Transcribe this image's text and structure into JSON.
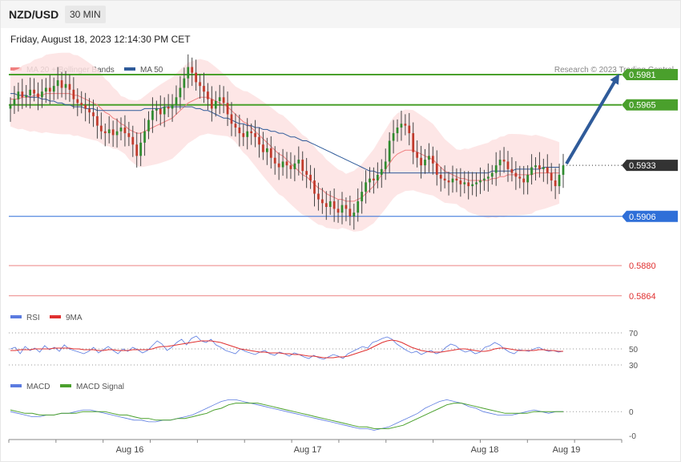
{
  "header": {
    "pair": "NZD/USD",
    "timeframe": "30 MIN",
    "datetime": "Friday, August 18, 2023 12:14:30 PM CET"
  },
  "legend_main": {
    "ma20": "MA 20 + Bollinger Bands",
    "ma50": "MA 50",
    "ma20_color": "#f08080",
    "ma50_color": "#2f5b9a"
  },
  "credit": "Research © 2023 Trading Central",
  "rsi_legend": {
    "rsi": "RSI",
    "ma9": "9MA",
    "rsi_color": "#5b7be0",
    "ma9_color": "#e03030"
  },
  "macd_legend": {
    "macd": "MACD",
    "signal": "MACD Signal",
    "macd_color": "#5b7be0",
    "signal_color": "#4aa02c"
  },
  "x_axis": [
    "Aug 16",
    "Aug 17",
    "Aug 18",
    "Aug 19"
  ],
  "chart_data": [
    {
      "type": "candlestick",
      "name": "price",
      "ylim": [
        0.5855,
        0.5995
      ],
      "levels": [
        {
          "label": "0.5981",
          "value": 0.5981,
          "kind": "resistance",
          "color": "#4aa02c"
        },
        {
          "label": "0.5965",
          "value": 0.5965,
          "kind": "resistance",
          "color": "#4aa02c"
        },
        {
          "label": "0.5933",
          "value": 0.5933,
          "kind": "last",
          "color": "#333333"
        },
        {
          "label": "0.5906",
          "value": 0.5906,
          "kind": "pivot",
          "color": "#2f6fd8"
        },
        {
          "label": "0.5880",
          "value": 0.588,
          "kind": "support",
          "color": "#e03030"
        },
        {
          "label": "0.5864",
          "value": 0.5864,
          "kind": "support",
          "color": "#e03030"
        }
      ],
      "closes": [
        0.5965,
        0.5968,
        0.5972,
        0.5969,
        0.597,
        0.5973,
        0.5971,
        0.5969,
        0.5972,
        0.5974,
        0.5972,
        0.5975,
        0.5978,
        0.5974,
        0.5976,
        0.5973,
        0.5968,
        0.5966,
        0.5965,
        0.5963,
        0.5961,
        0.5959,
        0.5954,
        0.5951,
        0.595,
        0.5952,
        0.5949,
        0.5951,
        0.5953,
        0.595,
        0.5948,
        0.5944,
        0.5938,
        0.5945,
        0.5951,
        0.5957,
        0.5962,
        0.5963,
        0.596,
        0.5964,
        0.5963,
        0.5965,
        0.5969,
        0.5974,
        0.5979,
        0.5985,
        0.5982,
        0.5977,
        0.5975,
        0.5972,
        0.5968,
        0.5963,
        0.5967,
        0.5969,
        0.5966,
        0.596,
        0.5955,
        0.5953,
        0.595,
        0.5948,
        0.5951,
        0.595,
        0.5948,
        0.5944,
        0.594,
        0.5942,
        0.5937,
        0.5934,
        0.5932,
        0.5935,
        0.5933,
        0.5931,
        0.5934,
        0.5936,
        0.593,
        0.5928,
        0.5925,
        0.5918,
        0.5915,
        0.5913,
        0.5911,
        0.5914,
        0.591,
        0.5908,
        0.5912,
        0.591,
        0.5906,
        0.5908,
        0.5914,
        0.5919,
        0.5924,
        0.5926,
        0.5925,
        0.5928,
        0.5931,
        0.5935,
        0.5946,
        0.595,
        0.5953,
        0.5955,
        0.5954,
        0.595,
        0.594,
        0.5937,
        0.5933,
        0.5936,
        0.5938,
        0.5934,
        0.5928,
        0.5926,
        0.5925,
        0.5924,
        0.5926,
        0.5925,
        0.5923,
        0.5924,
        0.5922,
        0.5923,
        0.5924,
        0.5925,
        0.5926,
        0.5927,
        0.5929,
        0.5933,
        0.5936,
        0.5935,
        0.5931,
        0.5929,
        0.5927,
        0.5926,
        0.5924,
        0.5928,
        0.5932,
        0.5933,
        0.5931,
        0.5932,
        0.5929,
        0.5925,
        0.5922,
        0.5928,
        0.5933
      ],
      "ma20": [
        0.5968,
        0.5968,
        0.5968,
        0.5969,
        0.5969,
        0.5969,
        0.597,
        0.597,
        0.597,
        0.5971,
        0.5971,
        0.5971,
        0.5971,
        0.5971,
        0.5971,
        0.5971,
        0.597,
        0.597,
        0.5969,
        0.5968,
        0.5967,
        0.5966,
        0.5965,
        0.5963,
        0.5961,
        0.596,
        0.5958,
        0.5957,
        0.5955,
        0.5954,
        0.5952,
        0.5951,
        0.595,
        0.595,
        0.5951,
        0.5952,
        0.5953,
        0.5954,
        0.5955,
        0.5956,
        0.5957,
        0.5958,
        0.596,
        0.5962,
        0.5964,
        0.5966,
        0.5967,
        0.5968,
        0.5969,
        0.5969,
        0.5969,
        0.5968,
        0.5967,
        0.5966,
        0.5965,
        0.5964,
        0.5962,
        0.596,
        0.5958,
        0.5956,
        0.5955,
        0.5953,
        0.5951,
        0.5949,
        0.5947,
        0.5945,
        0.5943,
        0.5941,
        0.5939,
        0.5938,
        0.5936,
        0.5934,
        0.5932,
        0.593,
        0.5928,
        0.5927,
        0.5925,
        0.5923,
        0.5921,
        0.592,
        0.5918,
        0.5917,
        0.5916,
        0.5915,
        0.5915,
        0.5914,
        0.5914,
        0.5914,
        0.5915,
        0.5916,
        0.5918,
        0.592,
        0.5922,
        0.5925,
        0.5928,
        0.5931,
        0.5934,
        0.5937,
        0.5939,
        0.594,
        0.5941,
        0.5941,
        0.5941,
        0.594,
        0.5939,
        0.5938,
        0.5937,
        0.5936,
        0.5934,
        0.5932,
        0.593,
        0.5929,
        0.5928,
        0.5927,
        0.5926,
        0.5926,
        0.5925,
        0.5925,
        0.5925,
        0.5925,
        0.5925,
        0.5925,
        0.5926,
        0.5926,
        0.5927,
        0.5927,
        0.5928,
        0.5928,
        0.5928,
        0.5928,
        0.5928,
        0.5928,
        0.5928,
        0.5929,
        0.5929,
        0.5929,
        0.5929,
        0.5929,
        0.5929,
        0.5929
      ],
      "ma50": [
        0.5971,
        0.5971,
        0.597,
        0.597,
        0.597,
        0.5969,
        0.5969,
        0.5969,
        0.5968,
        0.5968,
        0.5967,
        0.5967,
        0.5966,
        0.5966,
        0.5965,
        0.5965,
        0.5964,
        0.5964,
        0.5964,
        0.5963,
        0.5963,
        0.5963,
        0.5962,
        0.5962,
        0.5962,
        0.5962,
        0.5962,
        0.5962,
        0.5962,
        0.5962,
        0.5962,
        0.5962,
        0.5962,
        0.5962,
        0.5963,
        0.5963,
        0.5963,
        0.5963,
        0.5963,
        0.5964,
        0.5964,
        0.5964,
        0.5964,
        0.5964,
        0.5964,
        0.5964,
        0.5964,
        0.5963,
        0.5963,
        0.5962,
        0.5962,
        0.5961,
        0.596,
        0.5959,
        0.5958,
        0.5958,
        0.5957,
        0.5956,
        0.5955,
        0.5955,
        0.5954,
        0.5954,
        0.5953,
        0.5953,
        0.5952,
        0.5952,
        0.5951,
        0.5951,
        0.595,
        0.595,
        0.5949,
        0.5948,
        0.5948,
        0.5947,
        0.5946,
        0.5946,
        0.5945,
        0.5944,
        0.5943,
        0.5942,
        0.5941,
        0.594,
        0.5939,
        0.5938,
        0.5937,
        0.5936,
        0.5935,
        0.5934,
        0.5933,
        0.5932,
        0.5931,
        0.593,
        0.593,
        0.5929,
        0.5929,
        0.5929,
        0.5929,
        0.5929,
        0.5929,
        0.5929,
        0.5929,
        0.5929,
        0.5929,
        0.5929,
        0.5929,
        0.5929,
        0.5929,
        0.5929,
        0.5929,
        0.5929,
        0.5929,
        0.5929,
        0.5929,
        0.5929,
        0.5929,
        0.5929,
        0.5929,
        0.5929,
        0.5929,
        0.5929,
        0.5929,
        0.5929,
        0.593,
        0.593,
        0.593,
        0.593,
        0.593,
        0.593,
        0.5931,
        0.5931,
        0.5931,
        0.5931,
        0.5931,
        0.5931,
        0.5931,
        0.5932,
        0.5932,
        0.5932,
        0.5932,
        0.5932
      ],
      "bollinger_width": 0.0018,
      "target_arrow": {
        "from": 0.5933,
        "to": 0.5981
      }
    },
    {
      "type": "line",
      "name": "RSI",
      "ylim": [
        20,
        80
      ],
      "ticks": [
        70,
        50,
        30
      ],
      "series": [
        {
          "name": "RSI",
          "values": [
            50,
            52,
            44,
            53,
            48,
            51,
            46,
            54,
            49,
            52,
            47,
            55,
            50,
            48,
            46,
            44,
            47,
            52,
            45,
            49,
            53,
            48,
            44,
            50,
            47,
            52,
            49,
            45,
            48,
            54,
            60,
            56,
            48,
            52,
            58,
            62,
            55,
            63,
            66,
            60,
            58,
            62,
            55,
            52,
            48,
            46,
            44,
            50,
            47,
            45,
            43,
            46,
            48,
            44,
            42,
            46,
            44,
            41,
            45,
            43,
            40,
            38,
            42,
            39,
            37,
            40,
            43,
            41,
            38,
            44,
            47,
            50,
            53,
            51,
            58,
            60,
            63,
            65,
            62,
            56,
            52,
            48,
            45,
            47,
            43,
            46,
            48,
            44,
            46,
            52,
            56,
            54,
            49,
            46,
            48,
            44,
            46,
            52,
            54,
            58,
            55,
            50,
            46,
            44,
            49,
            48,
            47,
            50,
            52,
            49,
            47,
            48,
            46,
            47
          ]
        },
        {
          "name": "9MA",
          "values": [
            48,
            48,
            49,
            49,
            49,
            50,
            50,
            50,
            50,
            51,
            51,
            51,
            51,
            50,
            50,
            49,
            49,
            49,
            48,
            48,
            49,
            49,
            48,
            48,
            48,
            49,
            49,
            49,
            49,
            50,
            52,
            53,
            53,
            54,
            55,
            56,
            57,
            58,
            59,
            60,
            60,
            60,
            59,
            58,
            56,
            54,
            52,
            50,
            49,
            48,
            47,
            46,
            46,
            45,
            45,
            45,
            44,
            44,
            43,
            43,
            42,
            41,
            41,
            40,
            39,
            39,
            39,
            40,
            40,
            41,
            43,
            45,
            47,
            49,
            52,
            55,
            58,
            60,
            61,
            60,
            58,
            55,
            52,
            50,
            48,
            47,
            46,
            46,
            46,
            47,
            48,
            49,
            50,
            50,
            49,
            48,
            47,
            47,
            48,
            50,
            51,
            51,
            50,
            49,
            48,
            48,
            48,
            48,
            49,
            49,
            48,
            48,
            47,
            47
          ]
        }
      ]
    },
    {
      "type": "line",
      "name": "MACD",
      "ylim": [
        -0.0015,
        0.001
      ],
      "tick_labels": [
        "0",
        "-0"
      ],
      "series": [
        {
          "name": "MACD",
          "values": [
            0.0,
            -0.0001,
            -0.0002,
            -0.0003,
            -0.0003,
            -0.0002,
            -0.0002,
            -0.0001,
            -0.0001,
            0.0,
            0.0001,
            0.0001,
            0.0,
            -0.0001,
            -0.0002,
            -0.0003,
            -0.0004,
            -0.0005,
            -0.0005,
            -0.0006,
            -0.0006,
            -0.0005,
            -0.0005,
            -0.0004,
            -0.0003,
            -0.0002,
            0.0,
            0.0002,
            0.0004,
            0.0006,
            0.0007,
            0.0007,
            0.0006,
            0.0005,
            0.0004,
            0.0003,
            0.0002,
            0.0001,
            0.0,
            -0.0001,
            -0.0002,
            -0.0003,
            -0.0004,
            -0.0005,
            -0.0006,
            -0.0007,
            -0.0008,
            -0.0009,
            -0.001,
            -0.001,
            -0.0011,
            -0.001,
            -0.0009,
            -0.0007,
            -0.0005,
            -0.0003,
            -0.0001,
            0.0002,
            0.0004,
            0.0006,
            0.0007,
            0.0006,
            0.0005,
            0.0003,
            0.0002,
            0.0,
            -0.0001,
            -0.0002,
            -0.0002,
            -0.0002,
            -0.0001,
            0.0,
            0.0001,
            0.0,
            -0.0001,
            0.0,
            0.0
          ]
        },
        {
          "name": "MACD Signal",
          "values": [
            0.0001,
            0.0,
            -0.0001,
            -0.0001,
            -0.0002,
            -0.0002,
            -0.0002,
            -0.0001,
            -0.0001,
            -0.0001,
            0.0,
            0.0,
            0.0,
            0.0,
            -0.0001,
            -0.0002,
            -0.0002,
            -0.0003,
            -0.0004,
            -0.0004,
            -0.0005,
            -0.0005,
            -0.0005,
            -0.0004,
            -0.0004,
            -0.0003,
            -0.0002,
            -0.0001,
            0.0001,
            0.0002,
            0.0004,
            0.0005,
            0.0005,
            0.0005,
            0.0005,
            0.0004,
            0.0003,
            0.0002,
            0.0001,
            0.0,
            -0.0001,
            -0.0002,
            -0.0003,
            -0.0004,
            -0.0005,
            -0.0006,
            -0.0007,
            -0.0008,
            -0.0009,
            -0.0009,
            -0.001,
            -0.001,
            -0.001,
            -0.0009,
            -0.0008,
            -0.0006,
            -0.0004,
            -0.0002,
            0.0,
            0.0002,
            0.0004,
            0.0005,
            0.0005,
            0.0004,
            0.0003,
            0.0002,
            0.0001,
            0.0,
            -0.0001,
            -0.0001,
            -0.0001,
            -0.0001,
            0.0,
            0.0,
            0.0,
            0.0,
            0.0
          ]
        }
      ]
    }
  ]
}
